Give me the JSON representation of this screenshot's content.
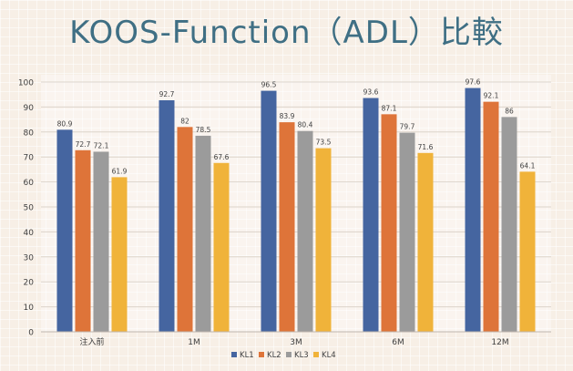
{
  "chart_data": {
    "type": "bar",
    "title": "KOOS-Function（ADL）比較",
    "categories": [
      "注入前",
      "1M",
      "3M",
      "6M",
      "12M"
    ],
    "series": [
      {
        "name": "KL1",
        "values": [
          80.9,
          92.7,
          96.5,
          93.6,
          97.6
        ],
        "color": "#4565a0"
      },
      {
        "name": "KL2",
        "values": [
          72.7,
          82,
          83.9,
          87.1,
          92.1
        ],
        "color": "#de7439"
      },
      {
        "name": "KL3",
        "values": [
          72.1,
          78.5,
          80.4,
          79.7,
          86
        ],
        "color": "#9b9b9b"
      },
      {
        "name": "KL4",
        "values": [
          61.9,
          67.6,
          73.5,
          71.6,
          64.1
        ],
        "color": "#f0b33a"
      }
    ],
    "ylim": [
      0,
      100
    ],
    "yticks": [
      0,
      10,
      20,
      30,
      40,
      50,
      60,
      70,
      80,
      90,
      100
    ],
    "grid": true,
    "legend_position": "bottom"
  }
}
